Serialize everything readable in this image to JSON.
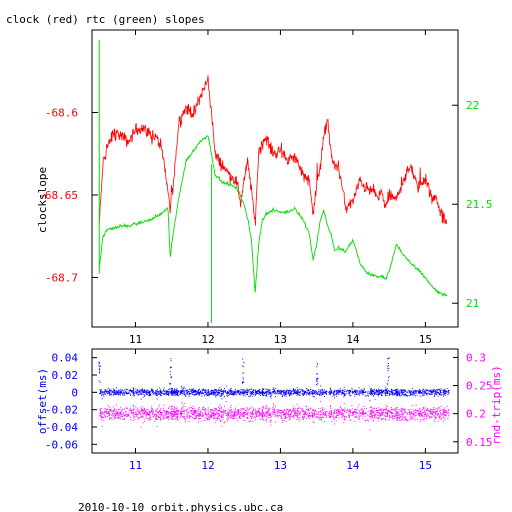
{
  "title": "clock (red) rtc (green) slopes",
  "footer": "2010-10-10 orbit.physics.ubc.ca",
  "colors": {
    "clock": "#ff0000",
    "rtc": "#00dd00",
    "offset": "#0000ff",
    "rndtrip": "#ff00ff",
    "frame": "#000000"
  },
  "chart_data": [
    {
      "type": "line",
      "title": "clock (red) rtc (green) slopes",
      "xlabel": "",
      "ylabel": "clockslope",
      "xlim": [
        10.4,
        15.45
      ],
      "x_ticks": [
        "11",
        "12",
        "13",
        "14",
        "15"
      ],
      "y_left": {
        "label": "clockslope",
        "lim": [
          -68.73,
          -68.55
        ],
        "ticks": [
          "-68.6",
          "-68.65",
          "-68.7"
        ]
      },
      "y_right": {
        "label": "",
        "lim": [
          20.88,
          22.38
        ],
        "ticks": [
          "22",
          "21.5",
          "21"
        ]
      },
      "series": [
        {
          "name": "clock",
          "axis": "left",
          "x": [
            10.5,
            10.55,
            10.6,
            10.7,
            10.8,
            10.9,
            11.0,
            11.1,
            11.2,
            11.3,
            11.35,
            11.42,
            11.48,
            11.52,
            11.6,
            11.7,
            11.8,
            11.9,
            12.0,
            12.05,
            12.1,
            12.2,
            12.3,
            12.4,
            12.45,
            12.5,
            12.55,
            12.6,
            12.65,
            12.7,
            12.8,
            12.9,
            13.0,
            13.1,
            13.2,
            13.3,
            13.4,
            13.45,
            13.5,
            13.55,
            13.6,
            13.65,
            13.7,
            13.75,
            13.8,
            13.85,
            13.9,
            14.0,
            14.1,
            14.2,
            14.3,
            14.35,
            14.4,
            14.45,
            14.5,
            14.6,
            14.7,
            14.8,
            14.9,
            15.0,
            15.05,
            15.1,
            15.15,
            15.2,
            15.25,
            15.3
          ],
          "y": [
            -68.668,
            -68.632,
            -68.622,
            -68.612,
            -68.614,
            -68.618,
            -68.611,
            -68.609,
            -68.613,
            -68.616,
            -68.621,
            -68.638,
            -68.66,
            -68.643,
            -68.605,
            -68.597,
            -68.601,
            -68.59,
            -68.58,
            -68.6,
            -68.626,
            -68.632,
            -68.638,
            -68.642,
            -68.655,
            -68.64,
            -68.63,
            -68.647,
            -68.668,
            -68.623,
            -68.615,
            -68.625,
            -68.623,
            -68.629,
            -68.627,
            -68.636,
            -68.642,
            -68.66,
            -68.645,
            -68.632,
            -68.615,
            -68.604,
            -68.626,
            -68.633,
            -68.632,
            -68.645,
            -68.658,
            -68.654,
            -68.641,
            -68.647,
            -68.648,
            -68.652,
            -68.648,
            -68.658,
            -68.65,
            -68.653,
            -68.64,
            -68.633,
            -68.646,
            -68.638,
            -68.647,
            -68.654,
            -68.65,
            -68.66,
            -68.664,
            -68.668
          ]
        },
        {
          "name": "rtc",
          "axis": "right",
          "x": [
            10.5,
            10.55,
            10.6,
            10.7,
            10.8,
            10.9,
            11.0,
            11.1,
            11.2,
            11.3,
            11.35,
            11.45,
            11.48,
            11.5,
            11.55,
            11.6,
            11.7,
            11.8,
            11.9,
            12.0,
            12.1,
            12.2,
            12.3,
            12.4,
            12.5,
            12.55,
            12.6,
            12.65,
            12.7,
            12.75,
            12.8,
            12.9,
            13.0,
            13.1,
            13.2,
            13.3,
            13.4,
            13.45,
            13.5,
            13.55,
            13.6,
            13.65,
            13.7,
            13.75,
            13.8,
            13.9,
            14.0,
            14.1,
            14.2,
            14.3,
            14.35,
            14.4,
            14.45,
            14.5,
            14.6,
            14.7,
            14.8,
            14.9,
            15.0,
            15.1,
            15.2,
            15.3
          ],
          "y": [
            21.18,
            21.33,
            21.37,
            21.38,
            21.39,
            21.39,
            21.4,
            21.41,
            21.42,
            21.44,
            21.45,
            21.48,
            21.22,
            21.3,
            21.42,
            21.54,
            21.72,
            21.77,
            21.82,
            21.85,
            21.65,
            21.61,
            21.6,
            21.58,
            21.5,
            21.42,
            21.32,
            21.05,
            21.3,
            21.42,
            21.45,
            21.47,
            21.46,
            21.46,
            21.48,
            21.43,
            21.35,
            21.22,
            21.3,
            21.42,
            21.47,
            21.39,
            21.35,
            21.26,
            21.28,
            21.26,
            21.32,
            21.2,
            21.15,
            21.14,
            21.13,
            21.14,
            21.12,
            21.16,
            21.3,
            21.24,
            21.2,
            21.17,
            21.13,
            21.08,
            21.05,
            21.04
          ]
        }
      ]
    },
    {
      "type": "scatter",
      "xlabel": "",
      "xlim": [
        10.4,
        15.45
      ],
      "x_ticks": [
        "11",
        "12",
        "13",
        "14",
        "15"
      ],
      "y_left": {
        "label": "offset(ms)",
        "lim": [
          -0.07,
          0.05
        ],
        "ticks": [
          "0.04",
          "0.02",
          "0",
          "-0.02",
          "-0.04",
          "-0.06"
        ]
      },
      "y_right": {
        "label": "rnd-trip(ms)",
        "lim": [
          0.13,
          0.315
        ],
        "ticks": [
          "0.3",
          "0.25",
          "0.2",
          "0.15"
        ]
      },
      "series": [
        {
          "name": "offset",
          "axis": "left",
          "band_center": 0.0,
          "band_halfwidth": 0.006,
          "spikes_x": [
            10.5,
            11.48,
            12.48,
            13.5,
            14.48
          ],
          "spikes_y": [
            0.035,
            0.04,
            0.04,
            0.035,
            0.04
          ]
        },
        {
          "name": "rnd-trip",
          "axis": "right",
          "band_center": 0.2,
          "band_halfwidth": 0.018
        }
      ]
    }
  ]
}
